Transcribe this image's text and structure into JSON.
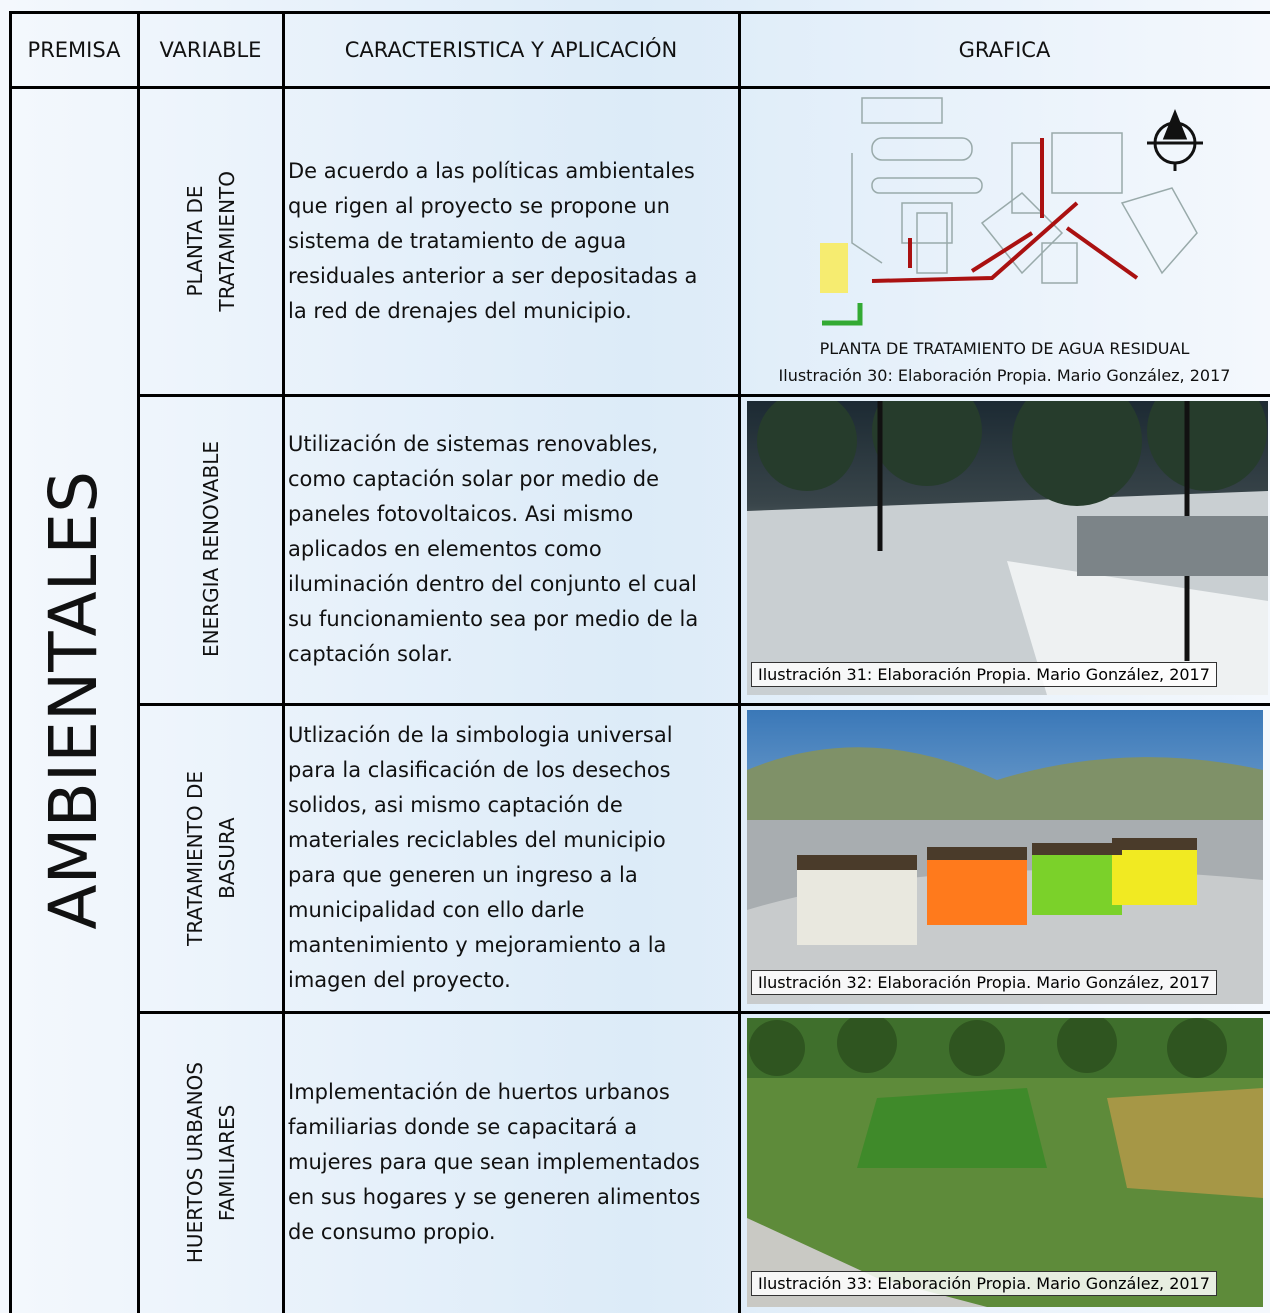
{
  "header": {
    "columns": [
      "PREMISA",
      "VARIABLE",
      "CARACTERISTICA Y APLICACIÓN",
      "GRAFICA"
    ]
  },
  "premise": "AMBIENTALES",
  "rows": [
    {
      "variable": [
        "PLANTA DE",
        "TRATAMIENTO"
      ],
      "description": [
        "De acuerdo a las políticas ambientales",
        "que rigen al proyecto se propone un",
        "sistema de tratamiento de agua",
        "residuales anterior a ser depositadas a",
        "la red de drenajes del municipio."
      ],
      "graphic_title": "PLANTA DE TRATAMIENTO DE AGUA RESIDUAL",
      "caption": "Ilustración 30: Elaboración Propia. Mario González, 2017"
    },
    {
      "variable": [
        "ENERGIA RENOVABLE"
      ],
      "description": [
        "Utilización de sistemas renovables,",
        "como captación solar por medio de",
        "paneles fotovoltaicos. Asi mismo",
        "aplicados en elementos como",
        "iluminación dentro del conjunto el cual",
        "su funcionamiento sea por medio de la",
        "captación solar."
      ],
      "caption": "Ilustración 31: Elaboración Propia. Mario González, 2017"
    },
    {
      "variable": [
        "TRATAMIENTO DE",
        "BASURA"
      ],
      "description": [
        "Utlización de la simbologia universal",
        "para la clasificación de los desechos",
        "solidos, asi mismo captación de",
        "materiales reciclables del municipio",
        "para que generen un ingreso a la",
        "municipalidad con ello darle",
        "mantenimiento y mejoramiento a la",
        "imagen del proyecto."
      ],
      "caption": "Ilustración 32: Elaboración Propia. Mario González, 2017"
    },
    {
      "variable": [
        "HUERTOS URBANOS",
        "FAMILIARES"
      ],
      "description": [
        "Implementación de huertos urbanos",
        "familiarias donde se capacitará a",
        "mujeres para que sean implementados",
        "en sus hogares y se generen alimentos",
        "de consumo propio."
      ],
      "caption": "Ilustración 33: Elaboración Propia. Mario González, 2017"
    }
  ]
}
